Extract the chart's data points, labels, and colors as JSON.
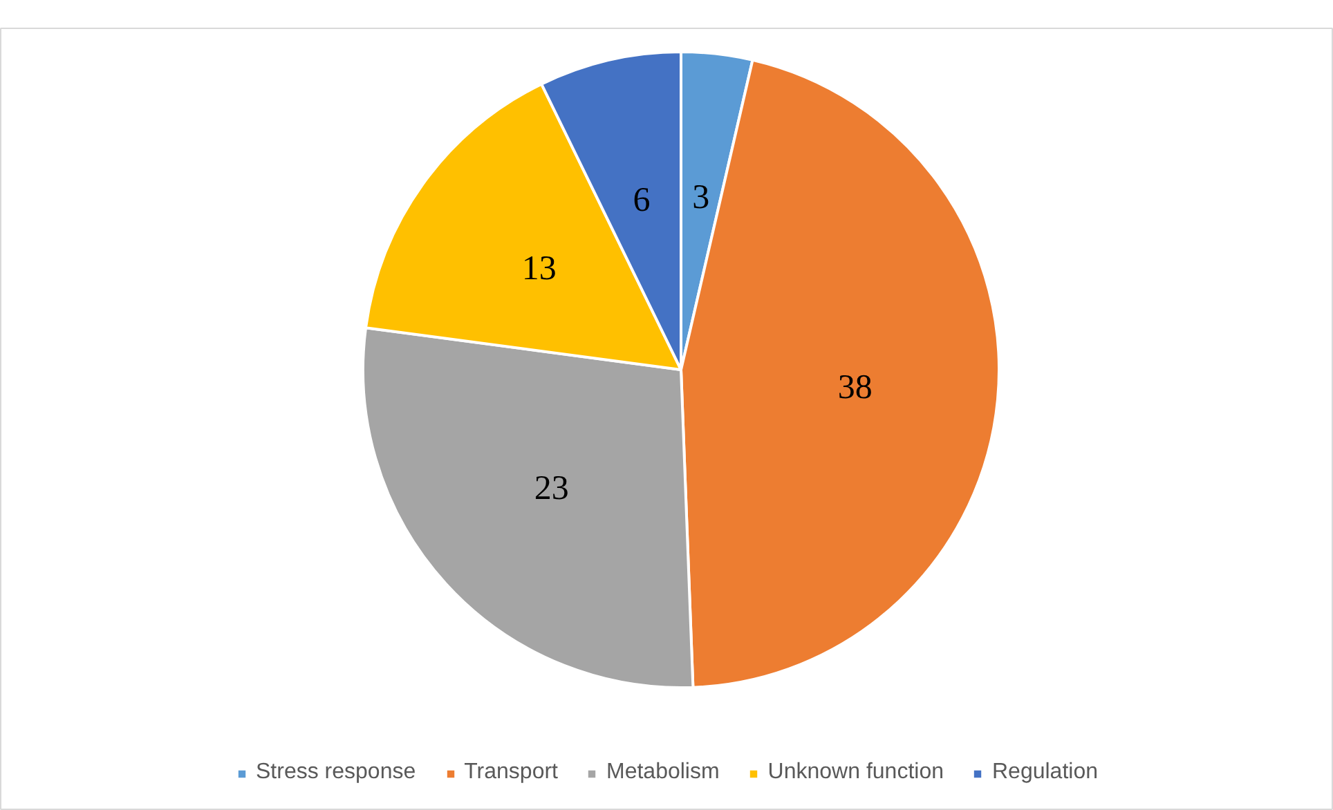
{
  "chart_data": {
    "type": "pie",
    "categories": [
      "Stress response",
      "Transport",
      "Metabolism",
      "Unknown function",
      "Regulation"
    ],
    "values": [
      3,
      38,
      23,
      13,
      6
    ],
    "colors": [
      "#5b9bd5",
      "#ed7d31",
      "#a5a5a5",
      "#ffc000",
      "#4472c4"
    ],
    "data_labels": true,
    "legend": "bottom"
  }
}
